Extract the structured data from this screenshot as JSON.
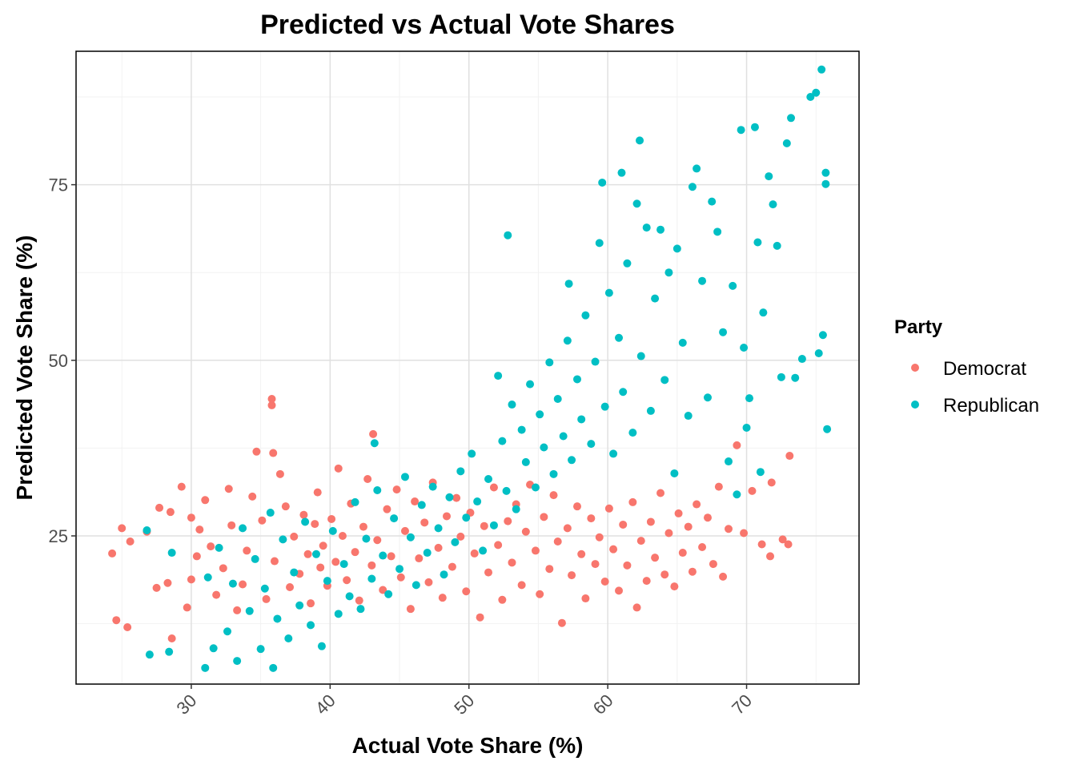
{
  "chart_data": {
    "type": "scatter",
    "title": "Predicted vs Actual Vote Shares",
    "xlabel": "Actual Vote Share (%)",
    "ylabel": "Predicted Vote Share (%)",
    "xlim": [
      21.7,
      78.1
    ],
    "ylim": [
      3.9,
      94.0
    ],
    "x_ticks": [
      30,
      40,
      50,
      60,
      70
    ],
    "y_ticks": [
      25,
      50,
      75
    ],
    "grid": true,
    "legend": {
      "title": "Party",
      "position": "right"
    },
    "series": [
      {
        "name": "Democrat",
        "color": "#F8766D",
        "points": [
          [
            24.3,
            22.5
          ],
          [
            24.6,
            13.0
          ],
          [
            25.0,
            26.1
          ],
          [
            25.6,
            24.2
          ],
          [
            25.4,
            12.0
          ],
          [
            26.8,
            25.6
          ],
          [
            27.5,
            17.6
          ],
          [
            27.7,
            29.0
          ],
          [
            28.3,
            18.3
          ],
          [
            28.5,
            28.4
          ],
          [
            28.6,
            10.4
          ],
          [
            29.3,
            32.0
          ],
          [
            29.7,
            14.8
          ],
          [
            30.0,
            27.6
          ],
          [
            30.0,
            18.8
          ],
          [
            30.4,
            22.1
          ],
          [
            30.6,
            25.9
          ],
          [
            31.0,
            30.1
          ],
          [
            31.4,
            23.5
          ],
          [
            31.8,
            16.6
          ],
          [
            32.3,
            20.4
          ],
          [
            32.7,
            31.7
          ],
          [
            32.9,
            26.5
          ],
          [
            33.3,
            14.4
          ],
          [
            33.7,
            18.1
          ],
          [
            34.0,
            22.9
          ],
          [
            34.4,
            30.6
          ],
          [
            34.7,
            37.0
          ],
          [
            35.1,
            27.2
          ],
          [
            35.4,
            16.0
          ],
          [
            35.8,
            44.5
          ],
          [
            35.9,
            36.8
          ],
          [
            35.8,
            43.6
          ],
          [
            36.0,
            21.4
          ],
          [
            36.4,
            33.8
          ],
          [
            36.8,
            29.2
          ],
          [
            37.1,
            17.7
          ],
          [
            37.4,
            24.9
          ],
          [
            37.8,
            19.6
          ],
          [
            38.1,
            28.0
          ],
          [
            38.4,
            22.4
          ],
          [
            38.6,
            15.4
          ],
          [
            38.9,
            26.7
          ],
          [
            39.1,
            31.2
          ],
          [
            39.3,
            20.5
          ],
          [
            39.5,
            23.6
          ],
          [
            39.8,
            17.9
          ],
          [
            40.1,
            27.4
          ],
          [
            40.4,
            21.3
          ],
          [
            40.6,
            34.6
          ],
          [
            40.9,
            25.0
          ],
          [
            41.2,
            18.7
          ],
          [
            41.5,
            29.6
          ],
          [
            41.8,
            22.7
          ],
          [
            42.1,
            15.8
          ],
          [
            42.4,
            26.3
          ],
          [
            42.7,
            33.1
          ],
          [
            43.0,
            20.8
          ],
          [
            43.1,
            39.5
          ],
          [
            43.4,
            24.4
          ],
          [
            43.8,
            17.3
          ],
          [
            44.1,
            28.8
          ],
          [
            44.4,
            22.1
          ],
          [
            44.8,
            31.6
          ],
          [
            45.1,
            19.1
          ],
          [
            45.4,
            25.7
          ],
          [
            45.8,
            14.6
          ],
          [
            46.1,
            29.9
          ],
          [
            46.4,
            21.8
          ],
          [
            46.8,
            26.9
          ],
          [
            47.1,
            18.4
          ],
          [
            47.4,
            32.6
          ],
          [
            47.8,
            23.3
          ],
          [
            48.1,
            16.2
          ],
          [
            48.4,
            27.8
          ],
          [
            48.8,
            20.6
          ],
          [
            49.1,
            30.4
          ],
          [
            49.4,
            24.9
          ],
          [
            49.8,
            17.1
          ],
          [
            50.1,
            28.3
          ],
          [
            50.4,
            22.5
          ],
          [
            50.8,
            13.4
          ],
          [
            51.1,
            26.4
          ],
          [
            51.4,
            19.8
          ],
          [
            51.8,
            31.9
          ],
          [
            52.1,
            23.7
          ],
          [
            52.4,
            15.9
          ],
          [
            52.8,
            27.1
          ],
          [
            53.1,
            21.2
          ],
          [
            53.4,
            29.5
          ],
          [
            53.8,
            18.0
          ],
          [
            54.1,
            25.6
          ],
          [
            54.4,
            32.3
          ],
          [
            54.8,
            22.9
          ],
          [
            55.1,
            16.7
          ],
          [
            55.4,
            27.7
          ],
          [
            55.8,
            20.3
          ],
          [
            56.1,
            30.8
          ],
          [
            56.4,
            24.2
          ],
          [
            56.7,
            12.6
          ],
          [
            57.1,
            26.1
          ],
          [
            57.4,
            19.4
          ],
          [
            57.8,
            29.2
          ],
          [
            58.1,
            22.4
          ],
          [
            58.4,
            16.1
          ],
          [
            58.8,
            27.5
          ],
          [
            59.1,
            21.0
          ],
          [
            59.4,
            24.8
          ],
          [
            59.8,
            18.5
          ],
          [
            60.1,
            28.9
          ],
          [
            60.4,
            23.1
          ],
          [
            60.8,
            17.2
          ],
          [
            61.1,
            26.6
          ],
          [
            61.4,
            20.8
          ],
          [
            61.8,
            29.8
          ],
          [
            62.1,
            14.8
          ],
          [
            62.4,
            24.3
          ],
          [
            62.8,
            18.6
          ],
          [
            63.1,
            27.0
          ],
          [
            63.4,
            21.9
          ],
          [
            63.8,
            31.1
          ],
          [
            64.1,
            19.5
          ],
          [
            64.4,
            25.4
          ],
          [
            64.8,
            17.8
          ],
          [
            65.1,
            28.2
          ],
          [
            65.4,
            22.6
          ],
          [
            65.8,
            26.3
          ],
          [
            66.1,
            19.9
          ],
          [
            66.4,
            29.5
          ],
          [
            66.8,
            23.4
          ],
          [
            67.2,
            27.6
          ],
          [
            67.6,
            21.0
          ],
          [
            68.0,
            32.0
          ],
          [
            68.3,
            19.2
          ],
          [
            68.7,
            26.0
          ],
          [
            69.3,
            37.9
          ],
          [
            69.8,
            25.4
          ],
          [
            70.4,
            31.4
          ],
          [
            71.1,
            23.8
          ],
          [
            71.8,
            32.6
          ],
          [
            72.6,
            24.5
          ],
          [
            73.1,
            36.4
          ],
          [
            73.0,
            23.8
          ],
          [
            71.7,
            22.1
          ]
        ]
      },
      {
        "name": "Republican",
        "color": "#00BFC4",
        "points": [
          [
            26.8,
            25.8
          ],
          [
            27.0,
            8.1
          ],
          [
            28.4,
            8.5
          ],
          [
            28.6,
            22.6
          ],
          [
            31.0,
            6.2
          ],
          [
            31.2,
            19.1
          ],
          [
            31.6,
            9.0
          ],
          [
            32.0,
            23.3
          ],
          [
            32.6,
            11.4
          ],
          [
            33.0,
            18.2
          ],
          [
            33.3,
            7.2
          ],
          [
            33.7,
            26.1
          ],
          [
            34.2,
            14.3
          ],
          [
            34.6,
            21.7
          ],
          [
            35.0,
            8.9
          ],
          [
            35.3,
            17.5
          ],
          [
            35.7,
            28.3
          ],
          [
            35.9,
            6.2
          ],
          [
            36.2,
            13.2
          ],
          [
            36.6,
            24.5
          ],
          [
            37.0,
            10.4
          ],
          [
            37.4,
            19.8
          ],
          [
            37.8,
            15.1
          ],
          [
            38.2,
            27.0
          ],
          [
            38.6,
            12.3
          ],
          [
            39.0,
            22.4
          ],
          [
            39.4,
            9.3
          ],
          [
            39.8,
            18.6
          ],
          [
            40.2,
            25.7
          ],
          [
            40.6,
            13.9
          ],
          [
            41.0,
            21.0
          ],
          [
            41.4,
            16.4
          ],
          [
            41.8,
            29.8
          ],
          [
            42.2,
            14.6
          ],
          [
            42.6,
            24.6
          ],
          [
            43.0,
            18.9
          ],
          [
            43.2,
            38.2
          ],
          [
            43.4,
            31.5
          ],
          [
            43.8,
            22.2
          ],
          [
            44.2,
            16.7
          ],
          [
            44.6,
            27.5
          ],
          [
            45.0,
            20.3
          ],
          [
            45.4,
            33.4
          ],
          [
            45.8,
            24.8
          ],
          [
            46.2,
            18.0
          ],
          [
            46.6,
            29.4
          ],
          [
            47.0,
            22.6
          ],
          [
            47.4,
            32.0
          ],
          [
            47.8,
            26.1
          ],
          [
            48.2,
            19.5
          ],
          [
            48.6,
            30.5
          ],
          [
            49.0,
            24.1
          ],
          [
            49.4,
            34.2
          ],
          [
            49.8,
            27.6
          ],
          [
            50.2,
            36.7
          ],
          [
            50.6,
            29.9
          ],
          [
            51.0,
            22.9
          ],
          [
            51.4,
            33.1
          ],
          [
            51.8,
            26.5
          ],
          [
            52.1,
            47.8
          ],
          [
            52.4,
            38.5
          ],
          [
            52.7,
            31.4
          ],
          [
            52.8,
            67.8
          ],
          [
            53.1,
            43.7
          ],
          [
            53.4,
            28.8
          ],
          [
            53.8,
            40.1
          ],
          [
            54.1,
            35.5
          ],
          [
            54.4,
            46.6
          ],
          [
            54.8,
            31.9
          ],
          [
            55.1,
            42.3
          ],
          [
            55.4,
            37.6
          ],
          [
            55.8,
            49.7
          ],
          [
            56.1,
            33.8
          ],
          [
            56.4,
            44.5
          ],
          [
            56.8,
            39.2
          ],
          [
            57.1,
            52.8
          ],
          [
            57.2,
            60.9
          ],
          [
            57.4,
            35.8
          ],
          [
            57.8,
            47.3
          ],
          [
            58.1,
            41.6
          ],
          [
            58.4,
            56.4
          ],
          [
            58.8,
            38.1
          ],
          [
            59.1,
            49.8
          ],
          [
            59.4,
            66.7
          ],
          [
            59.6,
            75.3
          ],
          [
            59.8,
            43.4
          ],
          [
            60.1,
            59.6
          ],
          [
            60.4,
            36.7
          ],
          [
            60.8,
            53.2
          ],
          [
            61.0,
            76.7
          ],
          [
            61.1,
            45.5
          ],
          [
            61.4,
            63.8
          ],
          [
            61.8,
            39.7
          ],
          [
            62.1,
            72.3
          ],
          [
            62.3,
            81.3
          ],
          [
            62.4,
            50.6
          ],
          [
            62.8,
            68.9
          ],
          [
            63.1,
            42.8
          ],
          [
            63.4,
            58.8
          ],
          [
            63.8,
            68.6
          ],
          [
            64.1,
            47.2
          ],
          [
            64.4,
            62.5
          ],
          [
            64.8,
            33.9
          ],
          [
            65.0,
            65.9
          ],
          [
            65.4,
            52.5
          ],
          [
            65.8,
            42.1
          ],
          [
            66.1,
            74.7
          ],
          [
            66.4,
            77.3
          ],
          [
            66.8,
            61.3
          ],
          [
            67.2,
            44.7
          ],
          [
            67.5,
            72.6
          ],
          [
            67.9,
            68.3
          ],
          [
            68.3,
            54.0
          ],
          [
            68.7,
            35.6
          ],
          [
            69.0,
            60.6
          ],
          [
            69.3,
            30.9
          ],
          [
            69.6,
            82.8
          ],
          [
            69.8,
            51.8
          ],
          [
            70.2,
            44.6
          ],
          [
            70.6,
            83.2
          ],
          [
            70.8,
            66.8
          ],
          [
            71.2,
            56.8
          ],
          [
            71.6,
            76.2
          ],
          [
            71.9,
            72.2
          ],
          [
            72.2,
            66.3
          ],
          [
            72.5,
            47.6
          ],
          [
            72.9,
            80.9
          ],
          [
            73.2,
            84.5
          ],
          [
            73.5,
            47.5
          ],
          [
            74.0,
            50.2
          ],
          [
            74.6,
            87.5
          ],
          [
            75.0,
            88.1
          ],
          [
            75.2,
            51.0
          ],
          [
            75.5,
            53.6
          ],
          [
            75.4,
            91.4
          ],
          [
            75.7,
            76.7
          ],
          [
            75.7,
            75.1
          ],
          [
            75.8,
            40.2
          ],
          [
            71.0,
            34.1
          ],
          [
            70.0,
            40.4
          ]
        ]
      }
    ]
  }
}
